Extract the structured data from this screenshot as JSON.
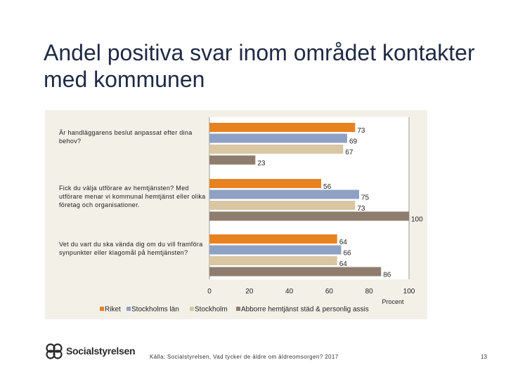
{
  "title": "Andel positiva svar inom området kontakter med kommunen",
  "chart_data": {
    "type": "bar",
    "orientation": "horizontal",
    "categories": [
      "Är handläggarens beslut anpassat efter dina behov?",
      "Fick du välja utförare av hemtjänsten? Med utförare menar vi kommunal hemtjänst eller olika företag och organisationer.",
      "Vet du vart du ska vända dig om du vill framföra synpunkter eller klagomål på hemtjänsten?"
    ],
    "series": [
      {
        "name": "Riket",
        "color": "#e8821e",
        "values": [
          73,
          56,
          64
        ]
      },
      {
        "name": "Stockholms län",
        "color": "#8ea1c4",
        "values": [
          69,
          75,
          66
        ]
      },
      {
        "name": "Stockholm",
        "color": "#d9c6a2",
        "values": [
          67,
          73,
          64
        ]
      },
      {
        "name": "Abborre hemtjänst städ & personlig assis",
        "color": "#8e7d6e",
        "values": [
          23,
          100,
          86
        ]
      }
    ],
    "xlim": [
      0,
      100
    ],
    "xticks": [
      "0",
      "20",
      "40",
      "60",
      "80",
      "100"
    ],
    "xlabel": "Procent",
    "legend_position": "bottom"
  },
  "footer": {
    "logo_text": "Socialstyrelsen",
    "source": "Källa: Socialstyrelsen, Vad tycker de äldre om äldreomsorgen? 2017",
    "page_number": "13"
  }
}
